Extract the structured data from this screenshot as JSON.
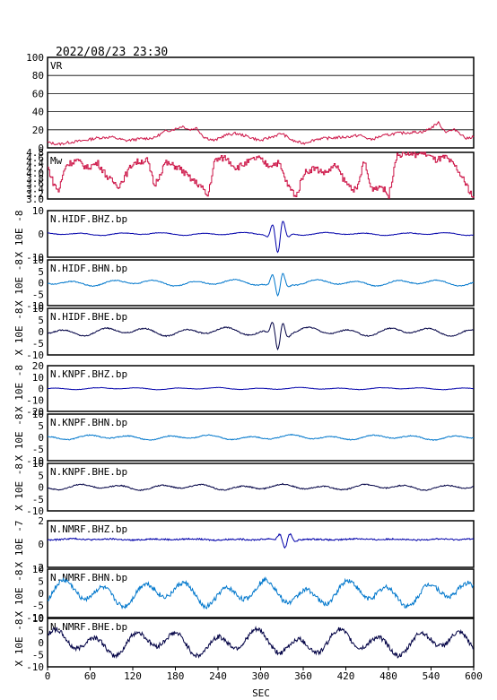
{
  "header": {
    "timestamp": "2022/08/23 23:30"
  },
  "chart_data": {
    "type": "line",
    "xlabel": "SEC",
    "xlim": [
      0,
      600
    ],
    "xticks": [
      "0",
      "60",
      "120",
      "180",
      "240",
      "300",
      "360",
      "420",
      "480",
      "540",
      "600"
    ],
    "panels": [
      {
        "label": "VR",
        "kind": "vr",
        "ylim": [
          0,
          100
        ],
        "yticks": [
          "100",
          "80",
          "60",
          "40",
          "20",
          "0"
        ],
        "color": "#cc1144",
        "series": [
          {
            "x": 0,
            "y": 6
          },
          {
            "x": 15,
            "y": 4
          },
          {
            "x": 30,
            "y": 6
          },
          {
            "x": 50,
            "y": 8
          },
          {
            "x": 70,
            "y": 11
          },
          {
            "x": 90,
            "y": 12
          },
          {
            "x": 110,
            "y": 8
          },
          {
            "x": 130,
            "y": 10
          },
          {
            "x": 150,
            "y": 11
          },
          {
            "x": 165,
            "y": 18
          },
          {
            "x": 180,
            "y": 21
          },
          {
            "x": 190,
            "y": 24
          },
          {
            "x": 200,
            "y": 20
          },
          {
            "x": 210,
            "y": 22
          },
          {
            "x": 220,
            "y": 12
          },
          {
            "x": 235,
            "y": 8
          },
          {
            "x": 250,
            "y": 14
          },
          {
            "x": 265,
            "y": 16
          },
          {
            "x": 280,
            "y": 13
          },
          {
            "x": 300,
            "y": 8
          },
          {
            "x": 315,
            "y": 12
          },
          {
            "x": 330,
            "y": 16
          },
          {
            "x": 345,
            "y": 8
          },
          {
            "x": 360,
            "y": 5
          },
          {
            "x": 380,
            "y": 10
          },
          {
            "x": 400,
            "y": 11
          },
          {
            "x": 420,
            "y": 12
          },
          {
            "x": 440,
            "y": 14
          },
          {
            "x": 455,
            "y": 9
          },
          {
            "x": 470,
            "y": 13
          },
          {
            "x": 490,
            "y": 16
          },
          {
            "x": 510,
            "y": 17
          },
          {
            "x": 530,
            "y": 18
          },
          {
            "x": 540,
            "y": 22
          },
          {
            "x": 550,
            "y": 28
          },
          {
            "x": 560,
            "y": 18
          },
          {
            "x": 575,
            "y": 20
          },
          {
            "x": 590,
            "y": 10
          },
          {
            "x": 600,
            "y": 13
          }
        ]
      },
      {
        "label": "Mw",
        "kind": "mw",
        "ylim": [
          3.0,
          4.8
        ],
        "yticks": [
          "4.8",
          "4.6",
          "4.4",
          "4.2",
          "4.0",
          "3.8",
          "3.6",
          "3.4",
          "3.2",
          "3.0"
        ],
        "color": "#cc1144",
        "series": [
          {
            "x": 0,
            "y": 4.2
          },
          {
            "x": 8,
            "y": 3.6
          },
          {
            "x": 15,
            "y": 3.3
          },
          {
            "x": 25,
            "y": 4.3
          },
          {
            "x": 40,
            "y": 4.5
          },
          {
            "x": 55,
            "y": 4.2
          },
          {
            "x": 70,
            "y": 4.4
          },
          {
            "x": 85,
            "y": 3.8
          },
          {
            "x": 100,
            "y": 3.5
          },
          {
            "x": 120,
            "y": 4.4
          },
          {
            "x": 140,
            "y": 4.5
          },
          {
            "x": 150,
            "y": 3.5
          },
          {
            "x": 165,
            "y": 4.4
          },
          {
            "x": 185,
            "y": 4.2
          },
          {
            "x": 200,
            "y": 3.8
          },
          {
            "x": 215,
            "y": 3.5
          },
          {
            "x": 225,
            "y": 3.1
          },
          {
            "x": 235,
            "y": 4.5
          },
          {
            "x": 250,
            "y": 4.6
          },
          {
            "x": 265,
            "y": 4.2
          },
          {
            "x": 280,
            "y": 4.4
          },
          {
            "x": 295,
            "y": 4.6
          },
          {
            "x": 310,
            "y": 4.3
          },
          {
            "x": 325,
            "y": 4.4
          },
          {
            "x": 338,
            "y": 3.5
          },
          {
            "x": 350,
            "y": 3.1
          },
          {
            "x": 360,
            "y": 4.0
          },
          {
            "x": 375,
            "y": 4.2
          },
          {
            "x": 390,
            "y": 4.0
          },
          {
            "x": 405,
            "y": 4.3
          },
          {
            "x": 420,
            "y": 3.6
          },
          {
            "x": 435,
            "y": 3.3
          },
          {
            "x": 445,
            "y": 4.5
          },
          {
            "x": 455,
            "y": 3.4
          },
          {
            "x": 470,
            "y": 3.5
          },
          {
            "x": 480,
            "y": 3.1
          },
          {
            "x": 490,
            "y": 4.6
          },
          {
            "x": 500,
            "y": 4.8
          },
          {
            "x": 515,
            "y": 4.7
          },
          {
            "x": 530,
            "y": 4.8
          },
          {
            "x": 545,
            "y": 4.5
          },
          {
            "x": 560,
            "y": 4.6
          },
          {
            "x": 575,
            "y": 4.2
          },
          {
            "x": 590,
            "y": 3.5
          },
          {
            "x": 600,
            "y": 3.0
          }
        ]
      },
      {
        "label": "N.HIDF.BHZ.bp",
        "kind": "wave",
        "ylim": [
          -10,
          10
        ],
        "yticks": [
          "10",
          "0",
          "-10"
        ],
        "ylabel": "X 10E -8",
        "color": "#0000aa",
        "amp": 0.4,
        "tone": 0.06,
        "burst": 8,
        "burstPos": 325
      },
      {
        "label": "N.HIDF.BHN.bp",
        "kind": "wave",
        "ylim": [
          -10,
          10
        ],
        "yticks": [
          "10",
          "5",
          "0",
          "-5",
          "-10"
        ],
        "ylabel": "X 10E -8",
        "color": "#0077cc",
        "amp": 0.9,
        "tone": 0.1,
        "burst": 6,
        "burstPos": 325
      },
      {
        "label": "N.HIDF.BHE.bp",
        "kind": "wave",
        "ylim": [
          -10,
          10
        ],
        "yticks": [
          "10",
          "5",
          "0",
          "-5",
          "-10"
        ],
        "ylabel": "X 10E -8",
        "color": "#000044",
        "amp": 1.2,
        "tone": 0.12,
        "burst": 7,
        "burstPos": 325
      },
      {
        "label": "N.KNPF.BHZ.bp",
        "kind": "wave",
        "ylim": [
          -20,
          20
        ],
        "yticks": [
          "20",
          "10",
          "0",
          "-10",
          "-20"
        ],
        "ylabel": "X 10E -8",
        "color": "#0000aa",
        "amp": 0.6,
        "tone": 0.08,
        "burst": 0,
        "burstPos": 325
      },
      {
        "label": "N.KNPF.BHN.bp",
        "kind": "wave",
        "ylim": [
          -10,
          10
        ],
        "yticks": [
          "10",
          "5",
          "0",
          "-5",
          "-10"
        ],
        "ylabel": "X 10E -8",
        "color": "#0077cc",
        "amp": 0.7,
        "tone": 0.1,
        "burst": 0,
        "burstPos": 325
      },
      {
        "label": "N.KNPF.BHE.bp",
        "kind": "wave",
        "ylim": [
          -10,
          10
        ],
        "yticks": [
          "10",
          "5",
          "0",
          "-5",
          "-10"
        ],
        "ylabel": "X 10E -8",
        "color": "#000044",
        "amp": 0.8,
        "tone": 0.12,
        "burst": 0,
        "burstPos": 325
      },
      {
        "label": "N.NMRF.BHZ.bp",
        "kind": "wave",
        "ylim": [
          -3,
          2
        ],
        "yticks": [
          "2",
          "0",
          "-2"
        ],
        "ylabel": "X 10E -7",
        "color": "#0000aa",
        "amp": 0.05,
        "tone": 0.04,
        "burst": 0.9,
        "burstPos": 335
      },
      {
        "label": "N.NMRF.BHN.bp",
        "kind": "wave",
        "ylim": [
          -10,
          10
        ],
        "yticks": [
          "10",
          "5",
          "0",
          "-5",
          "-10"
        ],
        "ylabel": "X 10E -8",
        "color": "#0077cc",
        "amp": 3.5,
        "tone": 0.5,
        "burst": 0,
        "burstPos": 325
      },
      {
        "label": "N.NMRF.BHE.bp",
        "kind": "wave",
        "ylim": [
          -10,
          10
        ],
        "yticks": [
          "10",
          "5",
          "0",
          "-5",
          "-10"
        ],
        "ylabel": "X 10E -8",
        "color": "#000044",
        "amp": 3.5,
        "tone": 0.5,
        "burst": 0,
        "burstPos": 325
      }
    ]
  }
}
